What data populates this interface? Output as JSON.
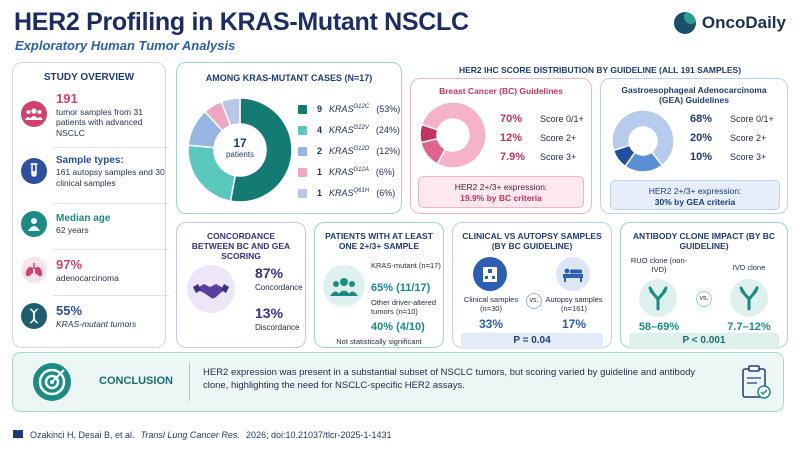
{
  "header": {
    "title": "HER2 Profiling in KRAS-Mutant NSCLC",
    "subtitle": "Exploratory Human Tumor Analysis",
    "logo_text": "OncoDaily"
  },
  "overview": {
    "title": "STUDY OVERVIEW",
    "items": [
      {
        "big": "191",
        "text": "tumor samples from 31 patients with advanced NSCLC",
        "icon": "people-icon",
        "color": "#d2416c"
      },
      {
        "big": "Sample types:",
        "text": "161 autopsy samples and 30 clinical samples",
        "icon": "test-tube-icon",
        "color": "#2c4f9e"
      },
      {
        "big": "Median age",
        "text": "62 years",
        "icon": "person-icon",
        "color": "#1a8c84"
      },
      {
        "big": "97%",
        "text": "adenocarcinoma",
        "icon": "lungs-icon",
        "color": "#d2416c"
      },
      {
        "big": "55%",
        "text": "KRAS-mutant tumors",
        "icon": "dna-icon",
        "color": "#2c4f9e"
      }
    ]
  },
  "kras": {
    "title": "AMONG KRAS-MUTANT CASES (n=17)",
    "center_value": "17",
    "center_label": "patients",
    "rows": [
      {
        "count": "9",
        "gene": "KRAS",
        "variant": "G12C",
        "pct": "(53%)",
        "color": "#137a74"
      },
      {
        "count": "4",
        "gene": "KRAS",
        "variant": "G12V",
        "pct": "(24%)",
        "color": "#59c8bd"
      },
      {
        "count": "2",
        "gene": "KRAS",
        "variant": "G12D",
        "pct": "(12%)",
        "color": "#97b6e3"
      },
      {
        "count": "1",
        "gene": "KRAS",
        "variant": "G12A",
        "pct": "(6%)",
        "color": "#f0a6c0"
      },
      {
        "count": "1",
        "gene": "KRAS",
        "variant": "Q61H",
        "pct": "(6%)",
        "color": "#b8c7e6"
      }
    ]
  },
  "ihc": {
    "title": "HER2 IHC SCORE DISTRIBUTION BY GUIDELINE (ALL 191 SAMPLES)",
    "bc": {
      "title": "Breast Cancer (BC) Guidelines",
      "rows": [
        {
          "pct": "70%",
          "label": "Score 0/1+",
          "value": 70,
          "color": "#f5b3ca"
        },
        {
          "pct": "12%",
          "label": "Score 2+",
          "value": 12,
          "color": "#e2638f"
        },
        {
          "pct": "7.9%",
          "label": "Score 3+",
          "value": 7.9,
          "color": "#c3335f"
        }
      ],
      "expr_line1": "HER2 2+/3+ expression:",
      "expr_line2": "19.9% by BC criteria"
    },
    "gea": {
      "title": "Gastroesophageal Adenocarcinoma (GEA) Guidelines",
      "rows": [
        {
          "pct": "68%",
          "label": "Score 0/1+",
          "value": 68,
          "color": "#b7cbee"
        },
        {
          "pct": "20%",
          "label": "Score 2+",
          "value": 20,
          "color": "#5b8fd8"
        },
        {
          "pct": "10%",
          "label": "Score 3+",
          "value": 10,
          "color": "#1f4f9e"
        }
      ],
      "expr_line1": "HER2 2+/3+ expression:",
      "expr_line2": "30% by GEA criteria"
    }
  },
  "concordance": {
    "title": "CONCORDANCE BETWEEN BC AND GEA SCORING",
    "v1": "87%",
    "l1": "Concordance",
    "v2": "13%",
    "l2": "Discordance"
  },
  "patients": {
    "title": "PATIENTS WITH AT LEAST ONE 2+/3+ SAMPLE",
    "a_label": "KRAS-mutant (n=17)",
    "a_value": "65% (11/17)",
    "b_label": "Other driver-altered tumors (n=10)",
    "b_value": "40% (4/10)",
    "note": "Not statistically significant"
  },
  "clinical": {
    "title": "CLINICAL VS AUTOPSY SAMPLES (BY BC GUIDELINE)",
    "a_label": "Clinical samples (n=30)",
    "a_value": "33%",
    "vs": "vs.",
    "b_label": "Autopsy samples (n=161)",
    "b_value": "17%",
    "p": "P = 0.04"
  },
  "antibody": {
    "title": "ANTIBODY CLONE IMPACT (BY BC GUIDELINE)",
    "a_label": "RUO clone (non-IVD)",
    "a_value": "58–69%",
    "vs": "vs.",
    "b_label": "IVD clone",
    "b_value": "7.7–12%",
    "p": "P < 0.001"
  },
  "conclusion": {
    "label": "CONCLUSION",
    "text": "HER2 expression was present in a substantial subset of NSCLC tumors, but scoring varied by guideline and antibody clone, highlighting the need for NSCLC-specific HER2 assays."
  },
  "footer": {
    "authors": "Ozakinci H, Desai B, et al.",
    "journal": "Transl Lung Cancer Res.",
    "rest": "2026; doi:10.21037/tlcr-2025-1-1431"
  }
}
